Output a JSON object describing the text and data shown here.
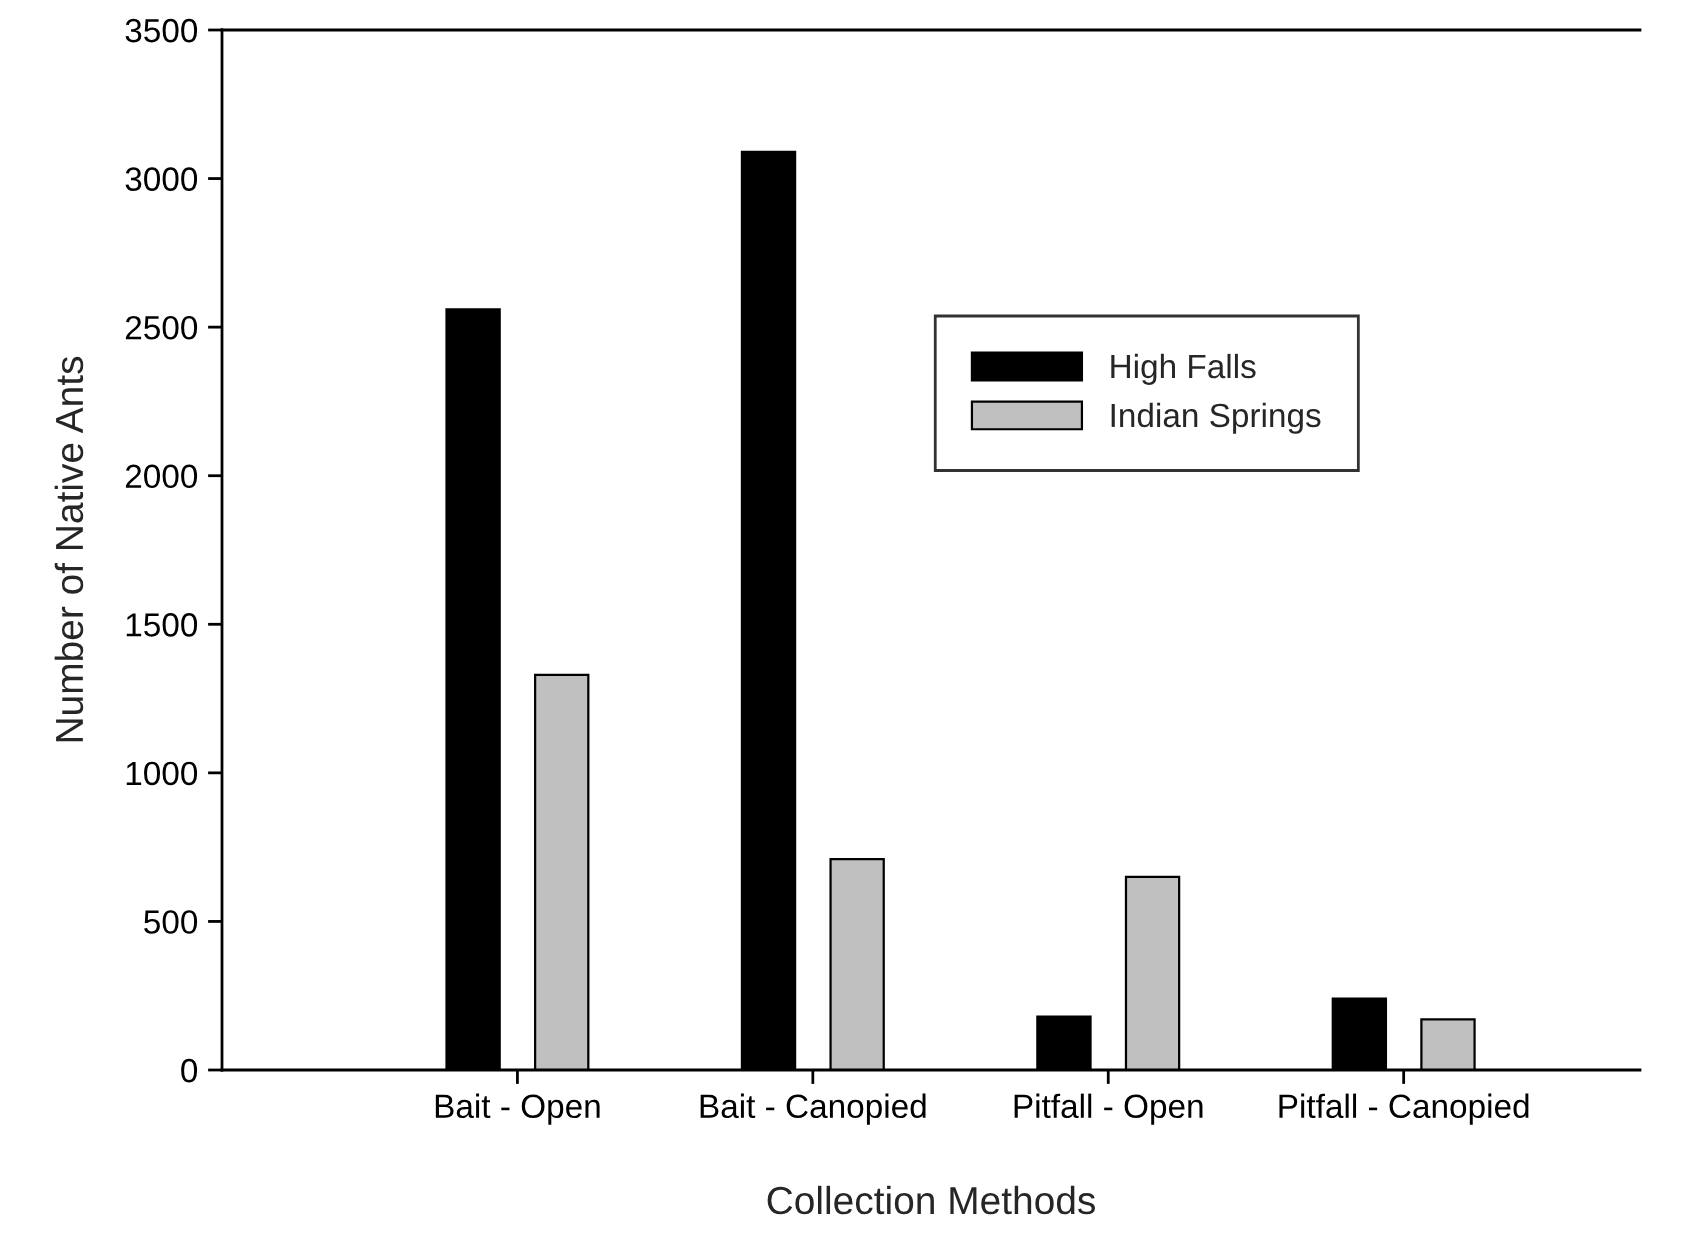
{
  "chart_data": {
    "type": "bar",
    "xlabel": "Collection Methods",
    "ylabel": "Number of Native Ants",
    "categories": [
      "Bait - Open",
      "Bait - Canopied",
      "Pitfall - Open",
      "Pitfall - Canopied"
    ],
    "series": [
      {
        "name": "High Falls",
        "color": "#000000",
        "values": [
          2560,
          3090,
          180,
          240
        ]
      },
      {
        "name": "Indian Springs",
        "color": "#c0c0c0",
        "values": [
          1330,
          710,
          650,
          170
        ]
      }
    ],
    "ylim": [
      0,
      3500
    ],
    "yticks": [
      0,
      500,
      1000,
      1500,
      2000,
      2500,
      3000,
      3500
    ],
    "grid": false,
    "legend": "top"
  }
}
